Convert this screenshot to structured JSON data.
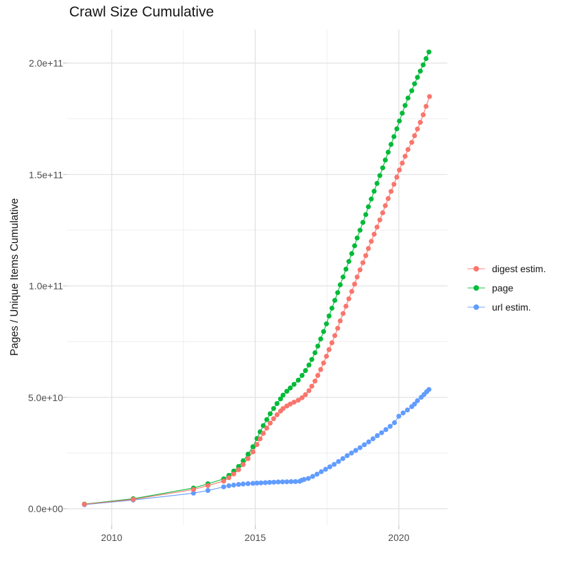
{
  "chart_data": {
    "type": "scatter",
    "title": "Crawl Size Cumulative",
    "xlabel": "",
    "ylabel": "Pages / Unique Items Cumulative",
    "legend_position": "right",
    "grid": true,
    "panel_background": "#ffffff",
    "grid_major_color": "#e2e2e2",
    "grid_minor_color": "#ededed",
    "axis_tick_color": "#c6c6c6",
    "xlim": [
      2008.45,
      2021.7
    ],
    "ylim": [
      0,
      215000000000.0
    ],
    "x_ticks": [
      2010,
      2015,
      2020
    ],
    "x_minor_ticks": [
      2012.5,
      2017.5
    ],
    "y_ticks": [
      {
        "value": 0,
        "label": "0.0e+00"
      },
      {
        "value": 50000000000.0,
        "label": "5.0e+10"
      },
      {
        "value": 100000000000.0,
        "label": "1.0e+11"
      },
      {
        "value": 150000000000.0,
        "label": "1.5e+11"
      },
      {
        "value": 200000000000.0,
        "label": "2.0e+11"
      }
    ],
    "y_minor_ticks": [
      25000000000.0,
      75000000000.0,
      125000000000.0,
      175000000000.0
    ],
    "series": [
      {
        "name": "digest estim.",
        "color": "#F8766D",
        "points": [
          [
            2009.05,
            2000000000.0
          ],
          [
            2010.75,
            4200000000.0
          ],
          [
            2012.85,
            8600000000.0
          ],
          [
            2013.35,
            10400000000.0
          ],
          [
            2013.9,
            12400000000.0
          ],
          [
            2014.08,
            13900000000.0
          ],
          [
            2014.25,
            15600000000.0
          ],
          [
            2014.42,
            17500000000.0
          ],
          [
            2014.58,
            19800000000.0
          ],
          [
            2014.75,
            22500000000.0
          ],
          [
            2014.92,
            25500000000.0
          ],
          [
            2015.06,
            28800000000.0
          ],
          [
            2015.17,
            31400000000.0
          ],
          [
            2015.28,
            33800000000.0
          ],
          [
            2015.4,
            36200000000.0
          ],
          [
            2015.52,
            38400000000.0
          ],
          [
            2015.64,
            40400000000.0
          ],
          [
            2015.76,
            42200000000.0
          ],
          [
            2015.88,
            43800000000.0
          ],
          [
            2015.97,
            45000000000.0
          ],
          [
            2016.1,
            46100000000.0
          ],
          [
            2016.22,
            47000000000.0
          ],
          [
            2016.35,
            47800000000.0
          ],
          [
            2016.5,
            48700000000.0
          ],
          [
            2016.63,
            49800000000.0
          ],
          [
            2016.75,
            51200000000.0
          ],
          [
            2016.87,
            53000000000.0
          ],
          [
            2016.97,
            55000000000.0
          ],
          [
            2017.08,
            57300000000.0
          ],
          [
            2017.18,
            59800000000.0
          ],
          [
            2017.28,
            62500000000.0
          ],
          [
            2017.38,
            65400000000.0
          ],
          [
            2017.48,
            68400000000.0
          ],
          [
            2017.57,
            71400000000.0
          ],
          [
            2017.67,
            74500000000.0
          ],
          [
            2017.77,
            77700000000.0
          ],
          [
            2017.87,
            81000000000.0
          ],
          [
            2017.96,
            84300000000.0
          ],
          [
            2018.06,
            87600000000.0
          ],
          [
            2018.16,
            90900000000.0
          ],
          [
            2018.26,
            94200000000.0
          ],
          [
            2018.36,
            97500000000.0
          ],
          [
            2018.46,
            100800000000.0
          ],
          [
            2018.55,
            104000000000.0
          ],
          [
            2018.65,
            107200000000.0
          ],
          [
            2018.75,
            110400000000.0
          ],
          [
            2018.85,
            113600000000.0
          ],
          [
            2018.94,
            116800000000.0
          ],
          [
            2019.04,
            120000000000.0
          ],
          [
            2019.14,
            123200000000.0
          ],
          [
            2019.24,
            126400000000.0
          ],
          [
            2019.34,
            129600000000.0
          ],
          [
            2019.44,
            132800000000.0
          ],
          [
            2019.53,
            136000000000.0
          ],
          [
            2019.63,
            139200000000.0
          ],
          [
            2019.73,
            142400000000.0
          ],
          [
            2019.83,
            145600000000.0
          ],
          [
            2019.93,
            148800000000.0
          ],
          [
            2020.02,
            152000000000.0
          ],
          [
            2020.12,
            155100000000.0
          ],
          [
            2020.22,
            158200000000.0
          ],
          [
            2020.32,
            161200000000.0
          ],
          [
            2020.45,
            164400000000.0
          ],
          [
            2020.55,
            167400000000.0
          ],
          [
            2020.65,
            170400000000.0
          ],
          [
            2020.75,
            173400000000.0
          ],
          [
            2020.85,
            176800000000.0
          ],
          [
            2020.95,
            180600000000.0
          ],
          [
            2021.07,
            185000000000.0
          ]
        ]
      },
      {
        "name": "page",
        "color": "#00BA38",
        "points": [
          [
            2009.05,
            2100000000.0
          ],
          [
            2010.75,
            4500000000.0
          ],
          [
            2012.85,
            9300000000.0
          ],
          [
            2013.35,
            11200000000.0
          ],
          [
            2013.9,
            13400000000.0
          ],
          [
            2014.08,
            15000000000.0
          ],
          [
            2014.25,
            16900000000.0
          ],
          [
            2014.42,
            19000000000.0
          ],
          [
            2014.58,
            21500000000.0
          ],
          [
            2014.75,
            24500000000.0
          ],
          [
            2014.92,
            27800000000.0
          ],
          [
            2015.06,
            31500000000.0
          ],
          [
            2015.17,
            34500000000.0
          ],
          [
            2015.28,
            37300000000.0
          ],
          [
            2015.4,
            40000000000.0
          ],
          [
            2015.52,
            42600000000.0
          ],
          [
            2015.64,
            45000000000.0
          ],
          [
            2015.76,
            47200000000.0
          ],
          [
            2015.88,
            49300000000.0
          ],
          [
            2015.97,
            51000000000.0
          ],
          [
            2016.1,
            52700000000.0
          ],
          [
            2016.22,
            54200000000.0
          ],
          [
            2016.35,
            55800000000.0
          ],
          [
            2016.5,
            57700000000.0
          ],
          [
            2016.63,
            59800000000.0
          ],
          [
            2016.75,
            62000000000.0
          ],
          [
            2016.87,
            64500000000.0
          ],
          [
            2016.97,
            67000000000.0
          ],
          [
            2017.08,
            70000000000.0
          ],
          [
            2017.18,
            73000000000.0
          ],
          [
            2017.28,
            76200000000.0
          ],
          [
            2017.38,
            79500000000.0
          ],
          [
            2017.48,
            83000000000.0
          ],
          [
            2017.57,
            86500000000.0
          ],
          [
            2017.67,
            90000000000.0
          ],
          [
            2017.77,
            93500000000.0
          ],
          [
            2017.87,
            97000000000.0
          ],
          [
            2017.96,
            100500000000.0
          ],
          [
            2018.06,
            104000000000.0
          ],
          [
            2018.16,
            107500000000.0
          ],
          [
            2018.26,
            111000000000.0
          ],
          [
            2018.36,
            114500000000.0
          ],
          [
            2018.46,
            118000000000.0
          ],
          [
            2018.55,
            121500000000.0
          ],
          [
            2018.65,
            125000000000.0
          ],
          [
            2018.75,
            128500000000.0
          ],
          [
            2018.85,
            132000000000.0
          ],
          [
            2018.94,
            135500000000.0
          ],
          [
            2019.04,
            139000000000.0
          ],
          [
            2019.14,
            142500000000.0
          ],
          [
            2019.24,
            146000000000.0
          ],
          [
            2019.34,
            149500000000.0
          ],
          [
            2019.44,
            153000000000.0
          ],
          [
            2019.53,
            156500000000.0
          ],
          [
            2019.63,
            160000000000.0
          ],
          [
            2019.73,
            163500000000.0
          ],
          [
            2019.83,
            167000000000.0
          ],
          [
            2019.93,
            170500000000.0
          ],
          [
            2020.02,
            174000000000.0
          ],
          [
            2020.12,
            177500000000.0
          ],
          [
            2020.22,
            181000000000.0
          ],
          [
            2020.32,
            184300000000.0
          ],
          [
            2020.45,
            187600000000.0
          ],
          [
            2020.55,
            190700000000.0
          ],
          [
            2020.65,
            193600000000.0
          ],
          [
            2020.75,
            196400000000.0
          ],
          [
            2020.85,
            199200000000.0
          ],
          [
            2020.95,
            202000000000.0
          ],
          [
            2021.05,
            205000000000.0
          ]
        ]
      },
      {
        "name": "url estim.",
        "color": "#619CFF",
        "points": [
          [
            2009.05,
            1800000000.0
          ],
          [
            2010.75,
            3900000000.0
          ],
          [
            2012.85,
            7000000000.0
          ],
          [
            2013.35,
            8200000000.0
          ],
          [
            2013.9,
            9800000000.0
          ],
          [
            2014.08,
            10300000000.0
          ],
          [
            2014.25,
            10600000000.0
          ],
          [
            2014.42,
            10900000000.0
          ],
          [
            2014.58,
            11100000000.0
          ],
          [
            2014.75,
            11250000000.0
          ],
          [
            2014.92,
            11400000000.0
          ],
          [
            2015.06,
            11500000000.0
          ],
          [
            2015.2,
            11600000000.0
          ],
          [
            2015.35,
            11700000000.0
          ],
          [
            2015.5,
            11800000000.0
          ],
          [
            2015.65,
            11900000000.0
          ],
          [
            2015.8,
            12000000000.0
          ],
          [
            2015.95,
            12050000000.0
          ],
          [
            2016.1,
            12100000000.0
          ],
          [
            2016.25,
            12150000000.0
          ],
          [
            2016.4,
            12200000000.0
          ],
          [
            2016.55,
            12300000000.0
          ],
          [
            2016.62,
            12800000000.0
          ],
          [
            2016.7,
            13100000000.0
          ],
          [
            2016.85,
            13600000000.0
          ],
          [
            2017.0,
            14500000000.0
          ],
          [
            2017.15,
            15500000000.0
          ],
          [
            2017.3,
            16600000000.0
          ],
          [
            2017.45,
            17700000000.0
          ],
          [
            2017.6,
            18800000000.0
          ],
          [
            2017.75,
            19900000000.0
          ],
          [
            2017.9,
            21200000000.0
          ],
          [
            2018.05,
            22500000000.0
          ],
          [
            2018.2,
            23800000000.0
          ],
          [
            2018.35,
            25000000000.0
          ],
          [
            2018.5,
            26200000000.0
          ],
          [
            2018.65,
            27400000000.0
          ],
          [
            2018.8,
            28700000000.0
          ],
          [
            2018.95,
            30000000000.0
          ],
          [
            2019.1,
            31400000000.0
          ],
          [
            2019.25,
            32800000000.0
          ],
          [
            2019.4,
            34100000000.0
          ],
          [
            2019.55,
            35500000000.0
          ],
          [
            2019.7,
            37000000000.0
          ],
          [
            2019.85,
            38600000000.0
          ],
          [
            2020.0,
            41500000000.0
          ],
          [
            2020.15,
            43000000000.0
          ],
          [
            2020.3,
            44300000000.0
          ],
          [
            2020.45,
            45800000000.0
          ],
          [
            2020.55,
            47000000000.0
          ],
          [
            2020.65,
            48500000000.0
          ],
          [
            2020.78,
            50000000000.0
          ],
          [
            2020.88,
            51300000000.0
          ],
          [
            2020.97,
            52500000000.0
          ],
          [
            2021.05,
            53500000000.0
          ]
        ]
      }
    ]
  }
}
